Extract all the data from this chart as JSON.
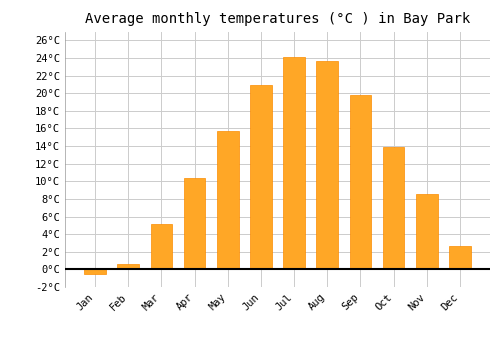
{
  "title": "Average monthly temperatures (°C ) in Bay Park",
  "months": [
    "Jan",
    "Feb",
    "Mar",
    "Apr",
    "May",
    "Jun",
    "Jul",
    "Aug",
    "Sep",
    "Oct",
    "Nov",
    "Dec"
  ],
  "values": [
    -0.5,
    0.6,
    5.1,
    10.4,
    15.7,
    20.9,
    24.1,
    23.7,
    19.8,
    13.9,
    8.5,
    2.6
  ],
  "bar_color": "#FFA726",
  "bar_edge_color": "#FB8C00",
  "ylim": [
    -2,
    27
  ],
  "yticks": [
    -2,
    0,
    2,
    4,
    6,
    8,
    10,
    12,
    14,
    16,
    18,
    20,
    22,
    24,
    26
  ],
  "ytick_labels": [
    "-2°C",
    "0°C",
    "2°C",
    "4°C",
    "6°C",
    "8°C",
    "10°C",
    "12°C",
    "14°C",
    "16°C",
    "18°C",
    "20°C",
    "22°C",
    "24°C",
    "26°C"
  ],
  "grid_color": "#cccccc",
  "bg_color": "#ffffff",
  "title_fontsize": 10,
  "tick_fontsize": 7.5,
  "font_family": "monospace"
}
